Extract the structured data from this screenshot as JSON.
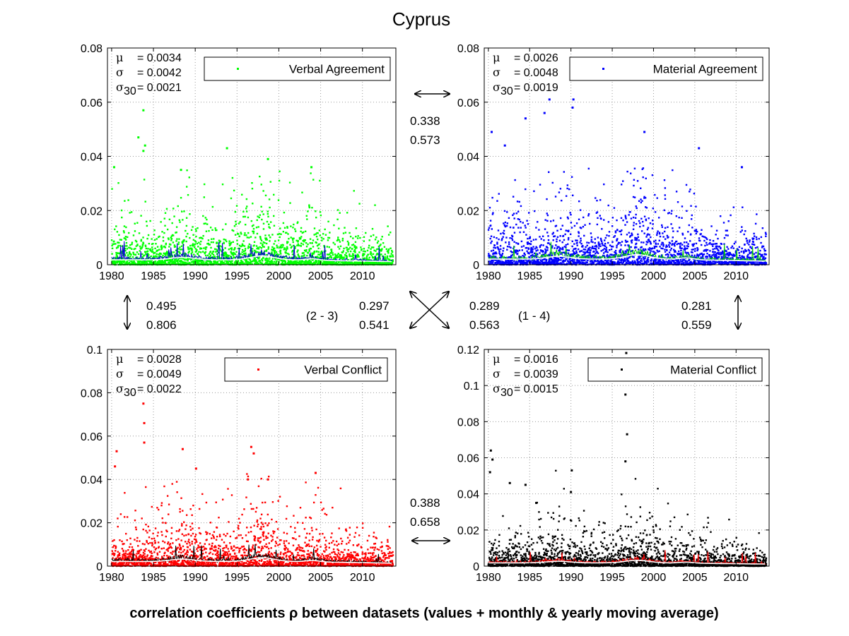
{
  "title": "Cyprus",
  "caption": "correlation coefficients ρ between datasets (values + monthly & yearly moving average)",
  "chart_data": [
    {
      "type": "scatter",
      "legend": "Verbal Agreement",
      "color": "#00ff00",
      "line_color": "#0000cc",
      "avg_color": "#ffffff",
      "x_ticks": [
        "1980",
        "1985",
        "1990",
        "1995",
        "2000",
        "2005",
        "2010"
      ],
      "y_ticks": [
        "0",
        "0.02",
        "0.04",
        "0.06",
        "0.08"
      ],
      "xlim": [
        1979.5,
        2014
      ],
      "ylim": [
        0,
        0.08
      ],
      "stats": {
        "mu": "= 0.0034",
        "sigma": "= 0.0042",
        "sigma30": "= 0.0021"
      },
      "outliers": [
        [
          1983.2,
          0.047
        ],
        [
          1983.8,
          0.057
        ],
        [
          1983.8,
          0.042
        ],
        [
          1984.0,
          0.044
        ],
        [
          1980.3,
          0.036
        ],
        [
          1988.3,
          0.035
        ],
        [
          1993.8,
          0.043
        ],
        [
          1998.7,
          0.039
        ],
        [
          2003.9,
          0.036
        ]
      ],
      "scale": 1.0
    },
    {
      "type": "scatter",
      "legend": "Material Agreement",
      "color": "#0000ff",
      "line_color": "#00cc00",
      "avg_color": "#ffffff",
      "x_ticks": [
        "1980",
        "1985",
        "1990",
        "1995",
        "2000",
        "2005",
        "2010"
      ],
      "y_ticks": [
        "0",
        "0.02",
        "0.04",
        "0.06",
        "0.08"
      ],
      "xlim": [
        1979.5,
        2014
      ],
      "ylim": [
        0,
        0.08
      ],
      "stats": {
        "mu": "= 0.0026",
        "sigma": "= 0.0048",
        "sigma30": "= 0.0019"
      },
      "outliers": [
        [
          1980.4,
          0.049
        ],
        [
          1984.5,
          0.054
        ],
        [
          1986.8,
          0.056
        ],
        [
          1987.4,
          0.061
        ],
        [
          1990.2,
          0.058
        ],
        [
          1990.3,
          0.061
        ],
        [
          1998.9,
          0.049
        ],
        [
          2005.5,
          0.043
        ],
        [
          2010.7,
          0.036
        ],
        [
          1982.0,
          0.044
        ]
      ],
      "scale": 1.15
    },
    {
      "type": "scatter",
      "legend": "Verbal Conflict",
      "color": "#ff0000",
      "line_color": "#000000",
      "avg_color": "#ffffff",
      "x_ticks": [
        "1980",
        "1985",
        "1990",
        "1995",
        "2000",
        "2005",
        "2010"
      ],
      "y_ticks": [
        "0",
        "0.02",
        "0.04",
        "0.06",
        "0.08",
        "0.1"
      ],
      "xlim": [
        1979.5,
        2014
      ],
      "ylim": [
        0,
        0.1
      ],
      "stats": {
        "mu": "= 0.0028",
        "sigma": "= 0.0049",
        "sigma30": "= 0.0022"
      },
      "outliers": [
        [
          1983.8,
          0.075
        ],
        [
          1983.9,
          0.066
        ],
        [
          1983.9,
          0.057
        ],
        [
          1980.6,
          0.053
        ],
        [
          1980.4,
          0.046
        ],
        [
          1988.5,
          0.054
        ],
        [
          1996.7,
          0.055
        ],
        [
          1997.0,
          0.052
        ],
        [
          1990.1,
          0.045
        ],
        [
          1996.3,
          0.04
        ],
        [
          2004.4,
          0.043
        ],
        [
          1998.7,
          0.04
        ]
      ],
      "scale": 1.2
    },
    {
      "type": "scatter",
      "legend": "Material Conflict",
      "color": "#000000",
      "line_color": "#ff0000",
      "avg_color": "#ffffff",
      "x_ticks": [
        "1980",
        "1985",
        "1990",
        "1995",
        "2000",
        "2005",
        "2010"
      ],
      "y_ticks": [
        "0",
        "0.02",
        "0.04",
        "0.06",
        "0.08",
        "0.1",
        "0.12"
      ],
      "xlim": [
        1979.5,
        2014
      ],
      "ylim": [
        0,
        0.12
      ],
      "stats": {
        "mu": "= 0.0016",
        "sigma": "= 0.0039",
        "sigma30": "= 0.0015"
      },
      "outliers": [
        [
          1996.7,
          0.118
        ],
        [
          1996.6,
          0.095
        ],
        [
          1996.8,
          0.073
        ],
        [
          1996.6,
          0.058
        ],
        [
          1980.3,
          0.064
        ],
        [
          1980.5,
          0.059
        ],
        [
          1980.2,
          0.052
        ],
        [
          1990.1,
          0.053
        ],
        [
          1982.6,
          0.046
        ],
        [
          1984.5,
          0.045
        ],
        [
          1985.8,
          0.035
        ],
        [
          1990.0,
          0.041
        ]
      ],
      "scale": 1.0
    }
  ],
  "correlations": {
    "top": {
      "a": "0.338",
      "b": "0.573"
    },
    "bottom": {
      "a": "0.388",
      "b": "0.658"
    },
    "left": {
      "a": "0.495",
      "b": "0.806"
    },
    "right": {
      "a": "0.281",
      "b": "0.559"
    },
    "diag_left": {
      "label": "(2 - 3)",
      "a": "0.297",
      "b": "0.541"
    },
    "diag_right": {
      "label": "(1 - 4)",
      "a": "0.289",
      "b": "0.563"
    }
  }
}
